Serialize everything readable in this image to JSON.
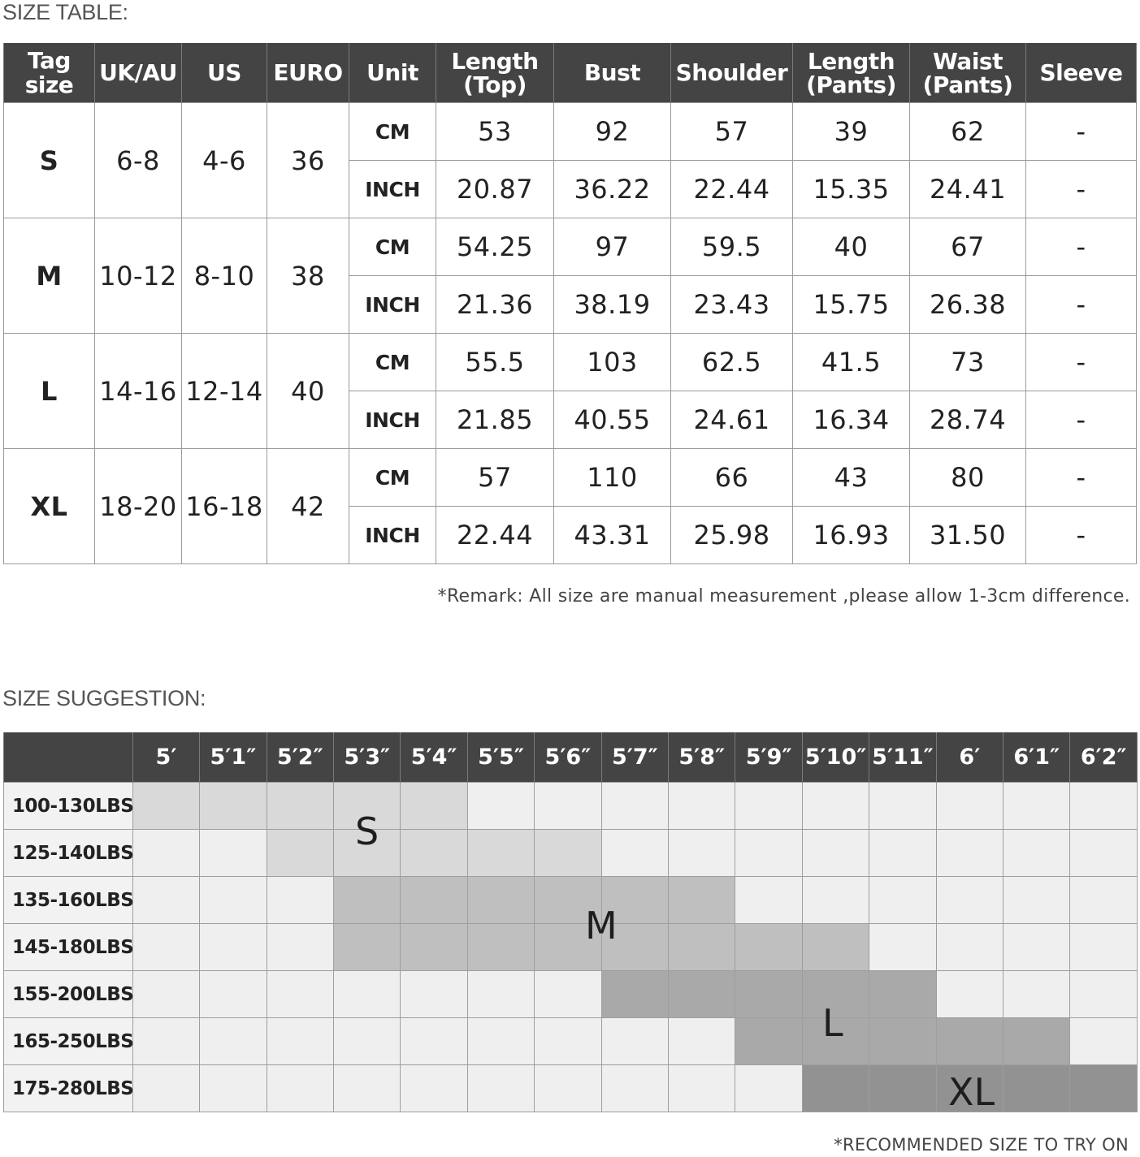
{
  "size_table": {
    "title": "SIZE TABLE:",
    "headers": {
      "tag_size": "Tag size",
      "uk_au": "UK/AU",
      "us": "US",
      "euro": "EURO",
      "unit": "Unit",
      "length_top": [
        "Length",
        "(Top)"
      ],
      "bust": "Bust",
      "shoulder": "Shoulder",
      "length_pants": [
        "Length",
        "(Pants)"
      ],
      "waist_pants": [
        "Waist",
        "(Pants)"
      ],
      "sleeve": "Sleeve"
    },
    "rows": [
      {
        "tag": "S",
        "uk_au": "6-8",
        "us": "4-6",
        "euro": "36",
        "cm": {
          "unit": "CM",
          "values": [
            "53",
            "92",
            "57",
            "39",
            "62",
            "-"
          ]
        },
        "inch": {
          "unit": "INCH",
          "values": [
            "20.87",
            "36.22",
            "22.44",
            "15.35",
            "24.41",
            "-"
          ]
        }
      },
      {
        "tag": "M",
        "uk_au": "10-12",
        "us": "8-10",
        "euro": "38",
        "cm": {
          "unit": "CM",
          "values": [
            "54.25",
            "97",
            "59.5",
            "40",
            "67",
            "-"
          ]
        },
        "inch": {
          "unit": "INCH",
          "values": [
            "21.36",
            "38.19",
            "23.43",
            "15.75",
            "26.38",
            "-"
          ]
        }
      },
      {
        "tag": "L",
        "uk_au": "14-16",
        "us": "12-14",
        "euro": "40",
        "cm": {
          "unit": "CM",
          "values": [
            "55.5",
            "103",
            "62.5",
            "41.5",
            "73",
            "-"
          ]
        },
        "inch": {
          "unit": "INCH",
          "values": [
            "21.85",
            "40.55",
            "24.61",
            "16.34",
            "28.74",
            "-"
          ]
        }
      },
      {
        "tag": "XL",
        "uk_au": "18-20",
        "us": "16-18",
        "euro": "42",
        "cm": {
          "unit": "CM",
          "values": [
            "57",
            "110",
            "66",
            "43",
            "80",
            "-"
          ]
        },
        "inch": {
          "unit": "INCH",
          "values": [
            "22.44",
            "43.31",
            "25.98",
            "16.93",
            "31.50",
            "-"
          ]
        }
      }
    ],
    "remark": "*Remark: All size are manual measurement ,please allow 1-3cm difference."
  },
  "size_suggestion": {
    "title": "SIZE SUGGESTION:",
    "heights": [
      "5′",
      "5′1″",
      "5′2″",
      "5′3″",
      "5′4″",
      "5′5″",
      "5′6″",
      "5′7″",
      "5′8″",
      "5′9″",
      "5′10″",
      "5′11″",
      "6′",
      "6′1″",
      "6′2″"
    ],
    "weights": [
      "100-130LBS",
      "125-140LBS",
      "135-160LBS",
      "145-180LBS",
      "155-200LBS",
      "165-250LBS",
      "175-280LBS"
    ],
    "grid": [
      [
        "S",
        "S",
        "S",
        "S",
        "S",
        "",
        "",
        "",
        "",
        "",
        "",
        "",
        "",
        "",
        ""
      ],
      [
        "",
        "",
        "S",
        "S",
        "S",
        "S",
        "S",
        "",
        "",
        "",
        "",
        "",
        "",
        "",
        ""
      ],
      [
        "",
        "",
        "",
        "M",
        "M",
        "M",
        "M",
        "M",
        "M",
        "",
        "",
        "",
        "",
        "",
        ""
      ],
      [
        "",
        "",
        "",
        "M",
        "M",
        "M",
        "M",
        "M",
        "M",
        "M",
        "M",
        "",
        "",
        "",
        ""
      ],
      [
        "",
        "",
        "",
        "",
        "",
        "",
        "",
        "L",
        "L",
        "L",
        "L",
        "L",
        "",
        "",
        ""
      ],
      [
        "",
        "",
        "",
        "",
        "",
        "",
        "",
        "",
        "",
        "L",
        "L",
        "L",
        "L",
        "L",
        ""
      ],
      [
        "",
        "",
        "",
        "",
        "",
        "",
        "",
        "",
        "",
        "",
        "XL",
        "XL",
        "XL",
        "XL",
        "XL"
      ]
    ],
    "zone_labels": {
      "s": "S",
      "m": "M",
      "l": "L",
      "xl": "XL"
    },
    "zone_colors": {
      "S": "#d9d9d9",
      "M": "#bfbfbf",
      "L": "#a9a9a9",
      "XL": "#929292"
    },
    "footnote": "*RECOMMENDED SIZE TO TRY ON"
  }
}
